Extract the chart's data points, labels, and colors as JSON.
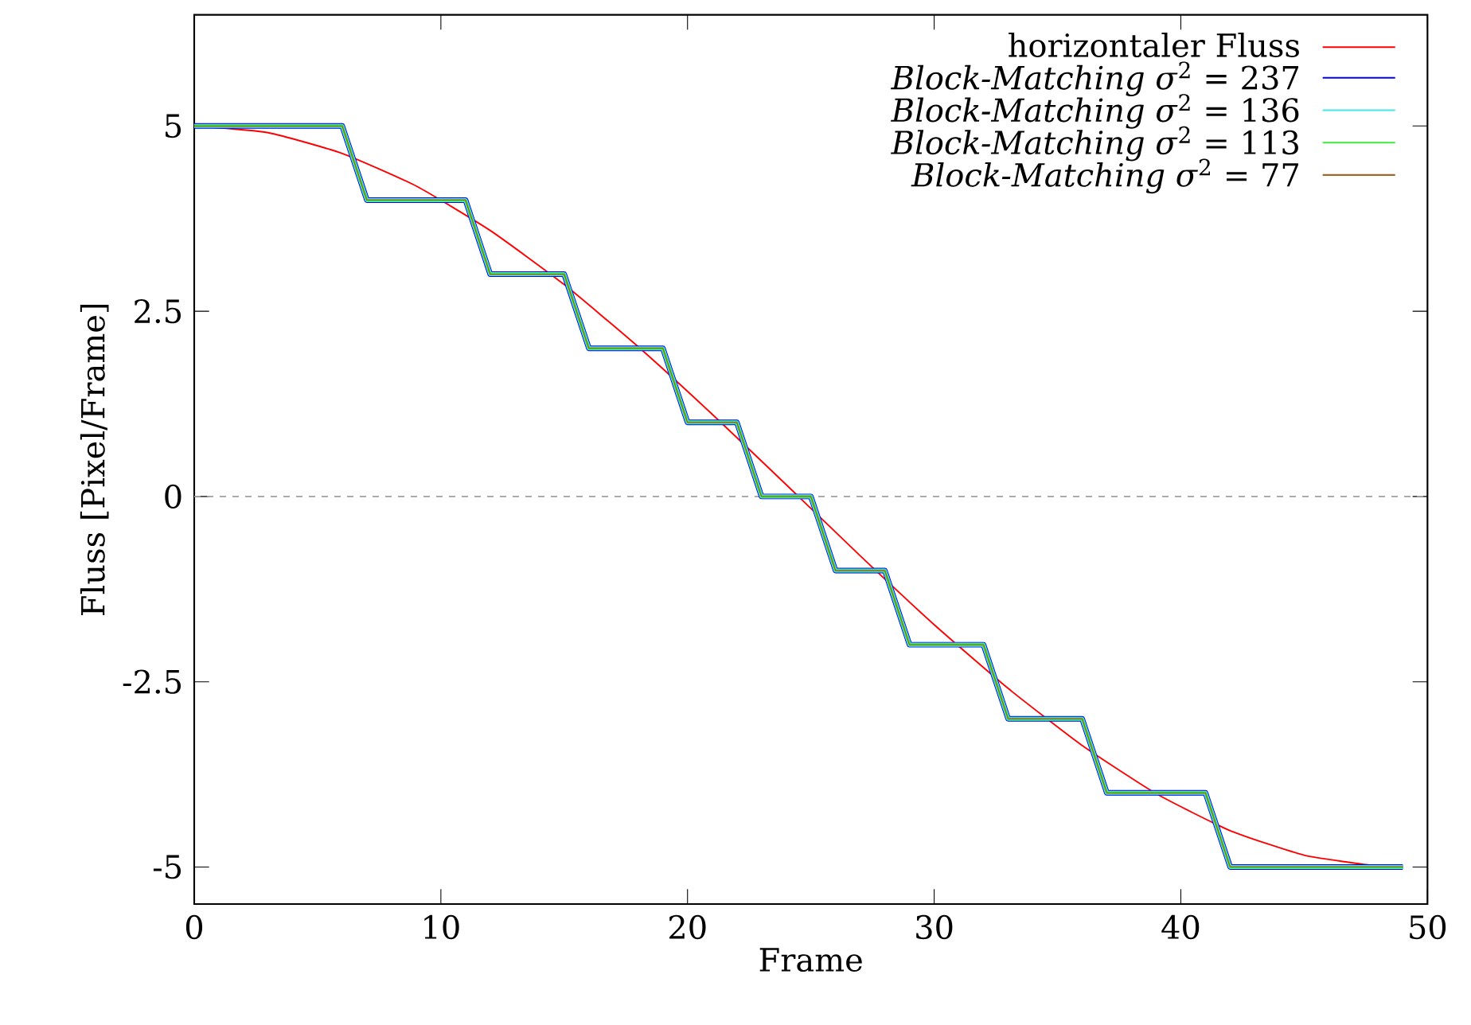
{
  "chart_data": {
    "type": "line",
    "xlabel": "Frame",
    "ylabel": "Fluss [Pixel/Frame]",
    "xlim": [
      0,
      50
    ],
    "ylim": [
      -5.5,
      6.5
    ],
    "xticks": [
      0,
      10,
      20,
      30,
      40,
      50
    ],
    "yticks": [
      -5,
      -2.5,
      0,
      2.5,
      5
    ],
    "grid": false,
    "legend": "top right",
    "ref_lines": [
      {
        "axis": "y",
        "value": 0,
        "color": "#a0a0a0",
        "line_style": "dashed"
      }
    ],
    "series": [
      {
        "name": "horizontaler Fluss",
        "color": "#ff0000",
        "x": [
          0,
          3,
          6,
          9,
          12,
          15,
          18,
          21,
          24,
          27,
          30,
          33,
          36,
          39,
          42,
          45,
          48,
          49
        ],
        "values": [
          5,
          4.91,
          4.63,
          4.19,
          3.59,
          2.86,
          2.02,
          1.11,
          0.16,
          -0.8,
          -1.73,
          -2.59,
          -3.36,
          -4.01,
          -4.51,
          -4.84,
          -4.99,
          -5
        ]
      },
      {
        "name": "*Block-Matching σ*$^{2}$ = 237",
        "color": "#0000ff",
        "x": [
          0,
          6,
          7,
          11,
          12,
          15,
          16,
          19,
          20,
          22,
          23,
          25,
          26,
          28,
          29,
          32,
          33,
          36,
          37,
          41,
          42,
          49
        ],
        "values": [
          5,
          5,
          4,
          4,
          3,
          3,
          2,
          2,
          1,
          1,
          0,
          0,
          -1,
          -1,
          -2,
          -2,
          -3,
          -3,
          -4,
          -4,
          -5,
          -5
        ]
      },
      {
        "name": "*Block-Matching σ*$^{2}$ = 136",
        "color": "#40e8e8",
        "x": [
          0,
          6,
          7,
          11,
          12,
          15,
          16,
          19,
          20,
          22,
          23,
          25,
          26,
          28,
          29,
          32,
          33,
          36,
          37,
          41,
          42,
          49
        ],
        "values": [
          5,
          5,
          4,
          4,
          3,
          3,
          2,
          2,
          1,
          1,
          0,
          0,
          -1,
          -1,
          -2,
          -2,
          -3,
          -3,
          -4,
          -4,
          -5,
          -5
        ]
      },
      {
        "name": "*Block-Matching σ*$^{2}$ = 113",
        "color": "#40e840",
        "x": [
          0,
          6,
          7,
          11,
          12,
          15,
          16,
          19,
          20,
          22,
          23,
          25,
          26,
          28,
          29,
          32,
          33,
          36,
          37,
          41,
          42,
          49
        ],
        "values": [
          5,
          5,
          4,
          4,
          3,
          3,
          2,
          2,
          1,
          1,
          0,
          0,
          -1,
          -1,
          -2,
          -2,
          -3,
          -3,
          -4,
          -4,
          -5,
          -5
        ]
      },
      {
        "name": "*Block-Matching σ*$^{2}$ = 77",
        "color": "#9a6a2a",
        "x": [
          0,
          6,
          7,
          11,
          12,
          15,
          16,
          19,
          20,
          22,
          23,
          25,
          26,
          28,
          29,
          32,
          33,
          36,
          37,
          41,
          42,
          49
        ],
        "values": [
          5,
          5,
          4,
          4,
          3,
          3,
          2,
          2,
          1,
          1,
          0,
          0,
          -1,
          -1,
          -2,
          -2,
          -3,
          -3,
          -4,
          -4,
          -5,
          -5
        ]
      }
    ]
  }
}
